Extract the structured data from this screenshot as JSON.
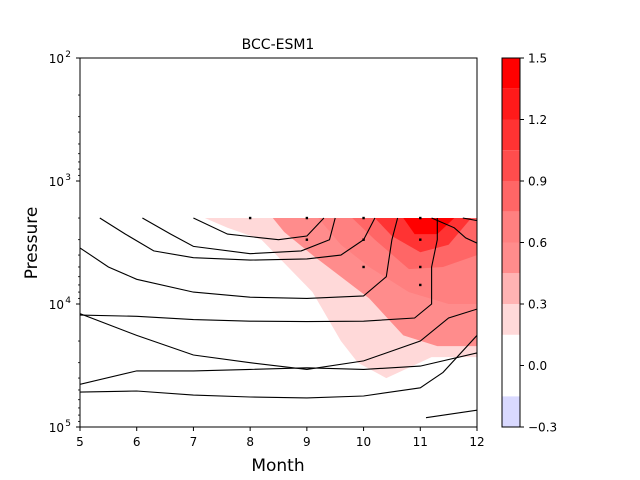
{
  "chart_data": {
    "type": "contour",
    "title": "BCC-ESM1",
    "xlabel": "Month",
    "ylabel": "Pressure",
    "x_ticks": [
      "5",
      "6",
      "7",
      "8",
      "9",
      "10",
      "11",
      "12"
    ],
    "xlim": [
      5,
      12
    ],
    "y_scale": "log",
    "y_inverted": true,
    "ylim": [
      100,
      100000
    ],
    "y_ticks": [
      {
        "base": "10",
        "exp": "2"
      },
      {
        "base": "10",
        "exp": "3"
      },
      {
        "base": "10",
        "exp": "4"
      },
      {
        "base": "10",
        "exp": "5"
      }
    ],
    "colorbar": {
      "levels": [
        -0.3,
        0.0,
        0.3,
        0.6,
        0.9,
        1.2,
        1.5
      ],
      "tick_labels": [
        "−0.3",
        "0.0",
        "0.3",
        "0.6",
        "0.9",
        "1.2",
        "1.5"
      ],
      "bands": [
        {
          "from": -0.3,
          "to": -0.15,
          "color": "#d9d9ff"
        },
        {
          "from": -0.15,
          "to": 0.15,
          "color": "#ffffff"
        },
        {
          "from": 0.15,
          "to": 0.3,
          "color": "#ffd9d9"
        },
        {
          "from": 0.3,
          "to": 0.45,
          "color": "#ffb3b3"
        },
        {
          "from": 0.45,
          "to": 0.6,
          "color": "#ff8c8c"
        },
        {
          "from": 0.6,
          "to": 0.75,
          "color": "#ff8080"
        },
        {
          "from": 0.75,
          "to": 0.9,
          "color": "#ff6666"
        },
        {
          "from": 0.9,
          "to": 1.05,
          "color": "#ff4d4d"
        },
        {
          "from": 1.05,
          "to": 1.2,
          "color": "#ff3333"
        },
        {
          "from": 1.2,
          "to": 1.35,
          "color": "#ff1a1a"
        },
        {
          "from": 1.35,
          "to": 1.5,
          "color": "#ff0000"
        }
      ]
    },
    "filled_regions": [
      {
        "level": 0.15,
        "points": [
          [
            7.2,
            2000
          ],
          [
            12,
            2000
          ],
          [
            12,
            27000
          ],
          [
            11.2,
            27000
          ],
          [
            10.4,
            40000
          ],
          [
            9.9,
            30000
          ],
          [
            9.6,
            20000
          ],
          [
            9.1,
            8000
          ],
          [
            8.2,
            3000
          ],
          [
            7.6,
            2400
          ]
        ]
      },
      {
        "level": 0.45,
        "points": [
          [
            8.4,
            2000
          ],
          [
            12,
            2000
          ],
          [
            12,
            22000
          ],
          [
            11.3,
            22000
          ],
          [
            10.7,
            18000
          ],
          [
            10.1,
            9000
          ],
          [
            9.6,
            6000
          ],
          [
            9.1,
            4000
          ],
          [
            8.6,
            2600
          ]
        ]
      },
      {
        "level": 0.6,
        "points": [
          [
            9.2,
            2000
          ],
          [
            12,
            2000
          ],
          [
            12,
            10000
          ],
          [
            11.5,
            10000
          ],
          [
            10.8,
            8000
          ],
          [
            10.1,
            5000
          ],
          [
            9.6,
            3300
          ]
        ]
      },
      {
        "level": 0.75,
        "points": [
          [
            9.8,
            2000
          ],
          [
            12,
            2000
          ],
          [
            12,
            4000
          ],
          [
            11.4,
            5000
          ],
          [
            10.8,
            5200
          ],
          [
            10.2,
            3000
          ]
        ]
      },
      {
        "level": 1.05,
        "points": [
          [
            10.2,
            2000
          ],
          [
            11.9,
            2000
          ],
          [
            11.5,
            3300
          ],
          [
            11.0,
            3800
          ],
          [
            10.5,
            2800
          ]
        ]
      },
      {
        "level": 1.35,
        "points": [
          [
            10.7,
            2000
          ],
          [
            11.6,
            2000
          ],
          [
            11.3,
            2700
          ],
          [
            10.9,
            2700
          ]
        ]
      }
    ],
    "contour_lines": [
      [
        [
          5.35,
          2000
        ],
        [
          5.8,
          2700
        ],
        [
          6.3,
          3700
        ],
        [
          7,
          4200
        ],
        [
          8,
          4400
        ],
        [
          9,
          4300
        ],
        [
          9.6,
          4000
        ],
        [
          10,
          3000
        ],
        [
          10.2,
          2000
        ]
      ],
      [
        [
          6.1,
          2000
        ],
        [
          6.6,
          2700
        ],
        [
          7,
          3400
        ],
        [
          8,
          3900
        ],
        [
          8.9,
          3700
        ],
        [
          9.4,
          3000
        ],
        [
          9.5,
          2000
        ]
      ],
      [
        [
          7,
          2000
        ],
        [
          7.6,
          2700
        ],
        [
          8.5,
          3000
        ],
        [
          9,
          2800
        ],
        [
          9.3,
          2000
        ]
      ],
      [
        [
          5,
          3500
        ],
        [
          5.5,
          5000
        ],
        [
          6,
          6300
        ],
        [
          7,
          8000
        ],
        [
          8,
          8800
        ],
        [
          9,
          9000
        ],
        [
          10,
          8600
        ],
        [
          10.4,
          6000
        ],
        [
          10.5,
          3000
        ],
        [
          10.6,
          2000
        ]
      ],
      [
        [
          5,
          12300
        ],
        [
          6,
          12600
        ],
        [
          7,
          13400
        ],
        [
          8,
          13800
        ],
        [
          9,
          13900
        ],
        [
          10,
          13800
        ],
        [
          10.9,
          13000
        ],
        [
          11.2,
          10000
        ],
        [
          11.2,
          5000
        ],
        [
          11.3,
          3000
        ],
        [
          11.3,
          2000
        ]
      ],
      [
        [
          5,
          12000
        ],
        [
          6,
          18000
        ],
        [
          7,
          26000
        ],
        [
          8,
          30000
        ],
        [
          9,
          34000
        ],
        [
          10,
          29000
        ],
        [
          11,
          20000
        ],
        [
          11.5,
          13000
        ],
        [
          12,
          11000
        ]
      ],
      [
        [
          5,
          45000
        ],
        [
          6,
          35000
        ],
        [
          7,
          35000
        ],
        [
          8,
          34000
        ],
        [
          9,
          33000
        ],
        [
          10,
          34000
        ],
        [
          11,
          32000
        ],
        [
          12,
          25000
        ]
      ],
      [
        [
          5,
          52000
        ],
        [
          6,
          51000
        ],
        [
          7,
          55000
        ],
        [
          8,
          57000
        ],
        [
          9,
          58000
        ],
        [
          10,
          56000
        ],
        [
          11,
          48000
        ],
        [
          11.4,
          36000
        ],
        [
          12,
          18000
        ]
      ],
      [
        [
          11.1,
          84000
        ],
        [
          12,
          73000
        ]
      ],
      [
        [
          11.2,
          2000
        ],
        [
          11.6,
          2400
        ],
        [
          11.8,
          2900
        ],
        [
          12,
          3200
        ]
      ],
      [
        [
          11.75,
          2000
        ],
        [
          12,
          2100
        ]
      ]
    ],
    "stipple_points": [
      [
        8,
        2000
      ],
      [
        9,
        2000
      ],
      [
        10,
        2000
      ],
      [
        11,
        2000
      ],
      [
        9,
        3000
      ],
      [
        10,
        3000
      ],
      [
        11,
        3000
      ],
      [
        10,
        5000
      ],
      [
        11,
        5000
      ],
      [
        11,
        7000
      ]
    ]
  }
}
